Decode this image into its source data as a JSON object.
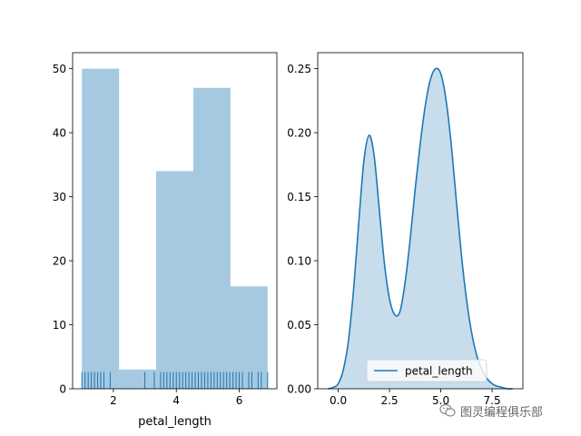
{
  "chart_data": [
    {
      "type": "bar",
      "subtype": "histogram_with_rug",
      "bins": [
        {
          "start": 1.0,
          "end": 2.18,
          "count": 50
        },
        {
          "start": 2.18,
          "end": 3.36,
          "count": 3
        },
        {
          "start": 3.36,
          "end": 4.54,
          "count": 34
        },
        {
          "start": 4.54,
          "end": 5.72,
          "count": 47
        },
        {
          "start": 5.72,
          "end": 6.9,
          "count": 16
        }
      ],
      "rug": [
        1.0,
        1.1,
        1.2,
        1.3,
        1.4,
        1.5,
        1.6,
        1.7,
        1.9,
        3.0,
        3.3,
        3.5,
        3.6,
        3.7,
        3.8,
        3.9,
        4.0,
        4.1,
        4.2,
        4.3,
        4.4,
        4.5,
        4.6,
        4.7,
        4.8,
        4.9,
        5.0,
        5.1,
        5.2,
        5.3,
        5.4,
        5.5,
        5.6,
        5.7,
        5.8,
        5.9,
        6.0,
        6.1,
        6.3,
        6.4,
        6.6,
        6.7,
        6.9
      ],
      "xlabel": "petal_length",
      "ylabel": "",
      "title": "",
      "xlim": [
        0.705,
        7.195
      ],
      "ylim": [
        0,
        52.5
      ],
      "xticks": [
        2,
        4,
        6
      ],
      "yticks": [
        0,
        10,
        20,
        30,
        40,
        50
      ],
      "color": "#1f77b4",
      "bar_alpha": 0.4,
      "grid": false
    },
    {
      "type": "area",
      "subtype": "kde",
      "series": [
        {
          "name": "petal_length",
          "x": [
            -0.5,
            -0.25,
            0.0,
            0.25,
            0.5,
            0.75,
            1.0,
            1.25,
            1.5,
            1.75,
            2.0,
            2.25,
            2.5,
            2.75,
            3.0,
            3.25,
            3.5,
            3.75,
            4.0,
            4.25,
            4.5,
            4.75,
            5.0,
            5.25,
            5.5,
            5.75,
            6.0,
            6.25,
            6.5,
            6.75,
            7.0,
            7.25,
            7.5,
            7.75,
            8.0,
            8.25,
            8.5
          ],
          "y": [
            0.0,
            0.001,
            0.004,
            0.015,
            0.038,
            0.078,
            0.13,
            0.178,
            0.198,
            0.182,
            0.14,
            0.098,
            0.07,
            0.058,
            0.06,
            0.082,
            0.116,
            0.156,
            0.192,
            0.222,
            0.242,
            0.25,
            0.246,
            0.226,
            0.192,
            0.148,
            0.105,
            0.07,
            0.044,
            0.026,
            0.015,
            0.008,
            0.004,
            0.002,
            0.001,
            0.0,
            0.0
          ]
        }
      ],
      "fill_alpha": 0.25,
      "color": "#1f77b4",
      "xlabel": "",
      "ylabel": "",
      "title": "",
      "xlim": [
        -1.0,
        9.0
      ],
      "ylim": [
        0.0,
        0.2625
      ],
      "xticks": [
        0.0,
        2.5,
        5.0,
        7.5
      ],
      "xtick_labels": [
        "0.0",
        "2.5",
        "5.0",
        "7.5"
      ],
      "yticks": [
        0.0,
        0.05,
        0.1,
        0.15,
        0.2,
        0.25
      ],
      "ytick_labels": [
        "0.00",
        "0.05",
        "0.10",
        "0.15",
        "0.20",
        "0.25"
      ],
      "legend": {
        "position": "lower-right",
        "entries": [
          "petal_length"
        ]
      },
      "grid": false
    }
  ],
  "watermark": {
    "text": "图灵编程俱乐部",
    "icon": "wechat-icon"
  }
}
